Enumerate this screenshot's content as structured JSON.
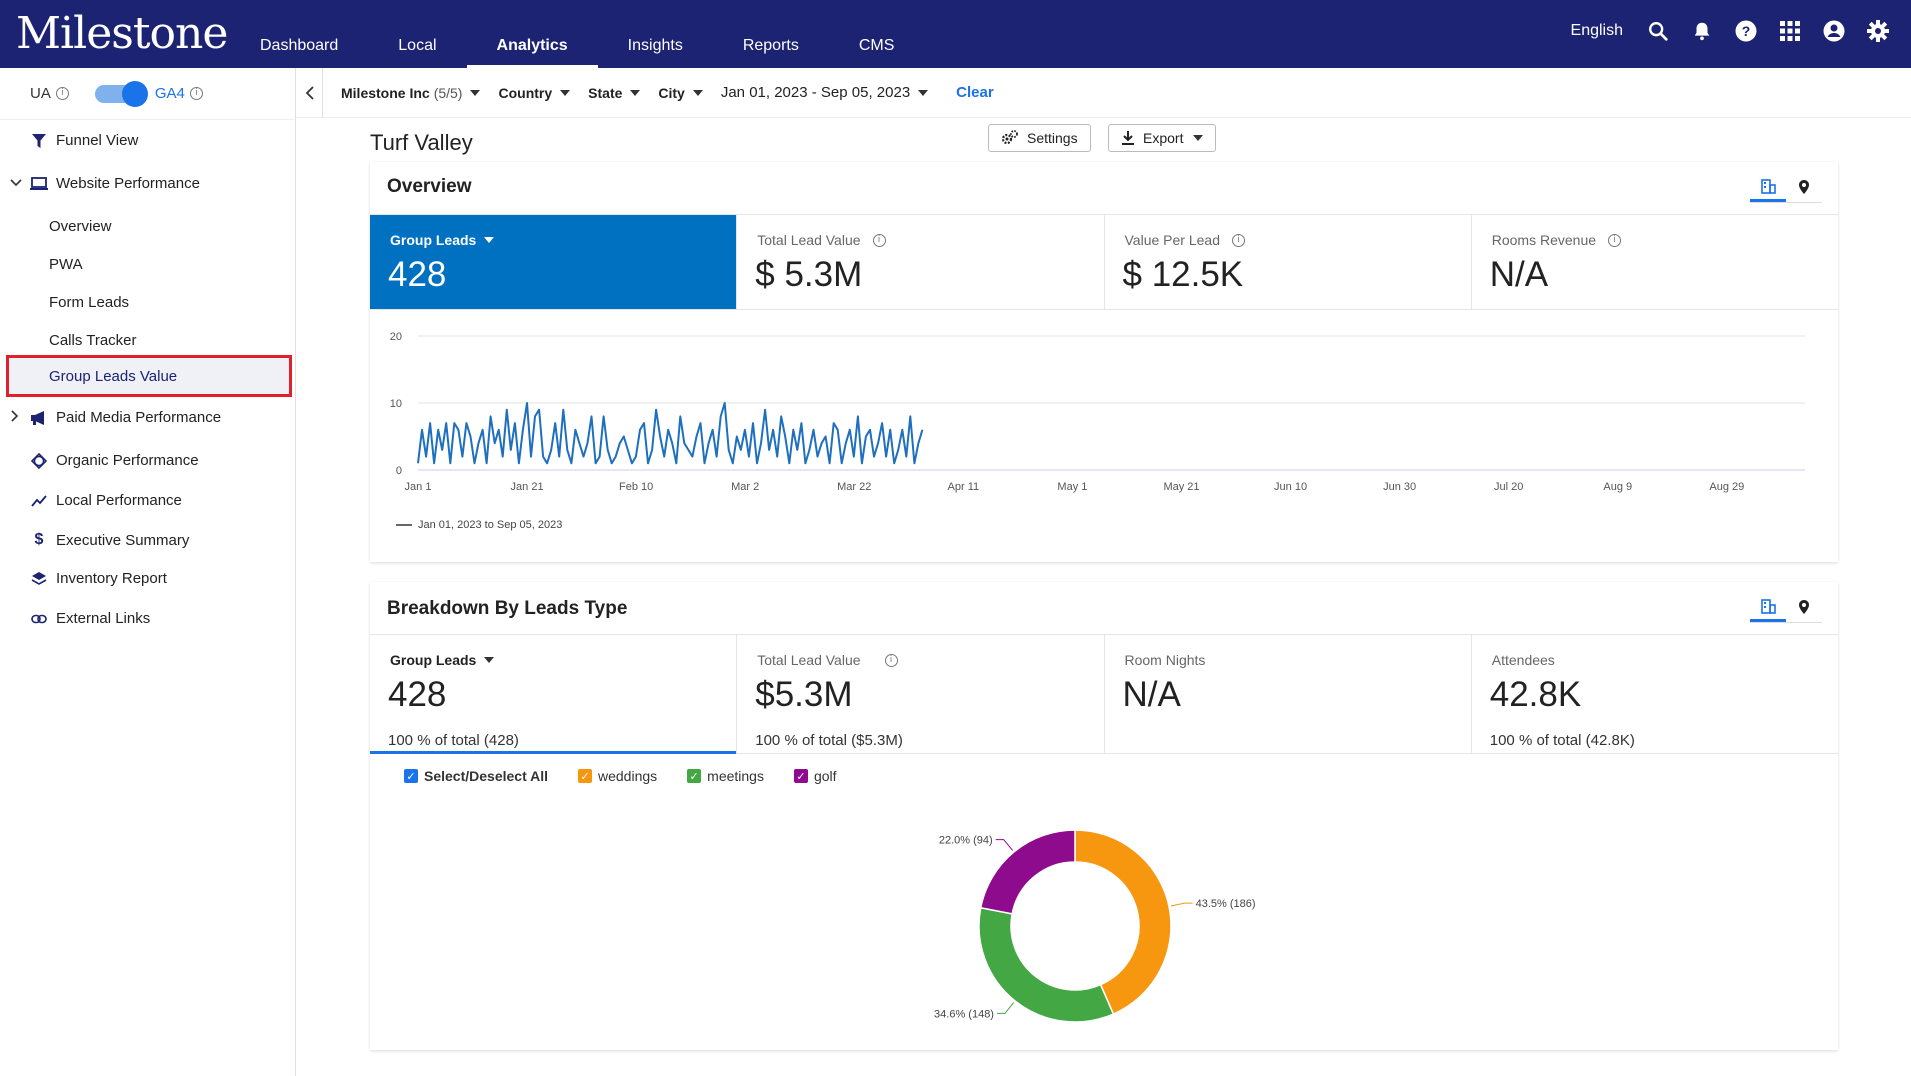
{
  "header": {
    "logo": "Milestone",
    "nav": [
      {
        "label": "Dashboard",
        "active": false
      },
      {
        "label": "Local",
        "active": false
      },
      {
        "label": "Analytics",
        "active": true
      },
      {
        "label": "Insights",
        "active": false
      },
      {
        "label": "Reports",
        "active": false
      },
      {
        "label": "CMS",
        "active": false
      }
    ],
    "language": "English",
    "icons": [
      "search-icon",
      "bell-icon",
      "help-icon",
      "apps-grid-icon",
      "account-icon",
      "settings-gear-icon"
    ]
  },
  "sidebar": {
    "ua_label": "UA",
    "ga4_label": "GA4",
    "ga4_enabled": true,
    "items": [
      {
        "label": "Funnel View",
        "icon": "funnel-icon"
      },
      {
        "label": "Website Performance",
        "icon": "laptop-icon",
        "expanded": true
      },
      {
        "label": "Paid Media Performance",
        "icon": "megaphone-icon",
        "expanded": false
      },
      {
        "label": "Organic Performance",
        "icon": "organic-icon"
      },
      {
        "label": "Local Performance",
        "icon": "trend-icon"
      },
      {
        "label": "Executive Summary",
        "icon": "dollar-icon"
      },
      {
        "label": "Inventory Report",
        "icon": "layers-icon"
      },
      {
        "label": "External Links",
        "icon": "link-icon"
      }
    ],
    "website_sub": [
      "Overview",
      "PWA",
      "Form Leads",
      "Calls Tracker",
      "Group Leads Value"
    ],
    "selected_sub": "Group Leads Value"
  },
  "filters": {
    "account": "Milestone Inc",
    "account_count": "(5/5)",
    "country": "Country",
    "state": "State",
    "city": "City",
    "date_range": "Jan 01, 2023 - Sep 05, 2023",
    "clear": "Clear"
  },
  "page": {
    "title": "Turf Valley",
    "settings_label": "Settings",
    "export_label": "Export"
  },
  "overview": {
    "title": "Overview",
    "metrics": [
      {
        "label": "Group Leads",
        "value": "428"
      },
      {
        "label": "Total Lead Value",
        "value": "$ 5.3M"
      },
      {
        "label": "Value Per Lead",
        "value": "$ 12.5K"
      },
      {
        "label": "Rooms Revenue",
        "value": "N/A"
      }
    ],
    "legend": "Jan 01, 2023 to Sep 05, 2023"
  },
  "chart_data": [
    {
      "type": "line",
      "y_ticks": [
        "0",
        "10",
        "20"
      ],
      "ylim": [
        0,
        20
      ],
      "x_ticks": [
        "Jan 1",
        "Jan 21",
        "Feb 10",
        "Mar 2",
        "Mar 22",
        "Apr 11",
        "May 1",
        "May 21",
        "Jun 10",
        "Jun 30",
        "Jul 20",
        "Aug 9",
        "Aug 29"
      ],
      "grid": true,
      "color": "#1f6fbf",
      "series": [
        {
          "name": "Jan 01, 2023 to Sep 05, 2023",
          "values": [
            1,
            6,
            2,
            7,
            1,
            6,
            3,
            7,
            1,
            7,
            6,
            2,
            7,
            5,
            1,
            4,
            6,
            1,
            8,
            4,
            6,
            2,
            9,
            3,
            7,
            1,
            6,
            10,
            2,
            8,
            9,
            2,
            1,
            3,
            7,
            2,
            9,
            3,
            1,
            6,
            4,
            2,
            4,
            8,
            1,
            2,
            8,
            3,
            1,
            2,
            4,
            5,
            3,
            1,
            2,
            6,
            7,
            1,
            3,
            9,
            5,
            2,
            6,
            4,
            1,
            8,
            4,
            3,
            2,
            5,
            7,
            1,
            4,
            6,
            2,
            8,
            10,
            3,
            1,
            5,
            3,
            6,
            2,
            7,
            1,
            4,
            9,
            3,
            6,
            2,
            8,
            5,
            1,
            6,
            3,
            7,
            1,
            3,
            6,
            2,
            4,
            5,
            1,
            7,
            6,
            1,
            4,
            6,
            2,
            8,
            1,
            5,
            6,
            2,
            4,
            7,
            2,
            6,
            1,
            3,
            6,
            2,
            8,
            1,
            4,
            6
          ]
        }
      ]
    },
    {
      "type": "pie",
      "donut": true,
      "slices": [
        {
          "name": "weddings",
          "value": 186,
          "label": "43.5% (186)",
          "color": "#f7960f"
        },
        {
          "name": "meetings",
          "value": 148,
          "label": "34.6% (148)",
          "color": "#43a843"
        },
        {
          "name": "golf",
          "value": 94,
          "label": "22.0% (94)",
          "color": "#8e0b8e"
        }
      ]
    }
  ],
  "breakdown": {
    "title": "Breakdown By Leads Type",
    "metrics": [
      {
        "label": "Group Leads",
        "value": "428",
        "sub": "100 % of total (428)"
      },
      {
        "label": "Total Lead Value",
        "value": "$5.3M",
        "sub": "100 % of total ($5.3M)"
      },
      {
        "label": "Room Nights",
        "value": "N/A",
        "sub": ""
      },
      {
        "label": "Attendees",
        "value": "42.8K",
        "sub": "100 % of total (42.8K)"
      }
    ],
    "checks": [
      {
        "label": "Select/Deselect All",
        "color": "#1a73e8"
      },
      {
        "label": "weddings",
        "color": "#f7960f"
      },
      {
        "label": "meetings",
        "color": "#43a843"
      },
      {
        "label": "golf",
        "color": "#8e0b8e"
      }
    ]
  }
}
